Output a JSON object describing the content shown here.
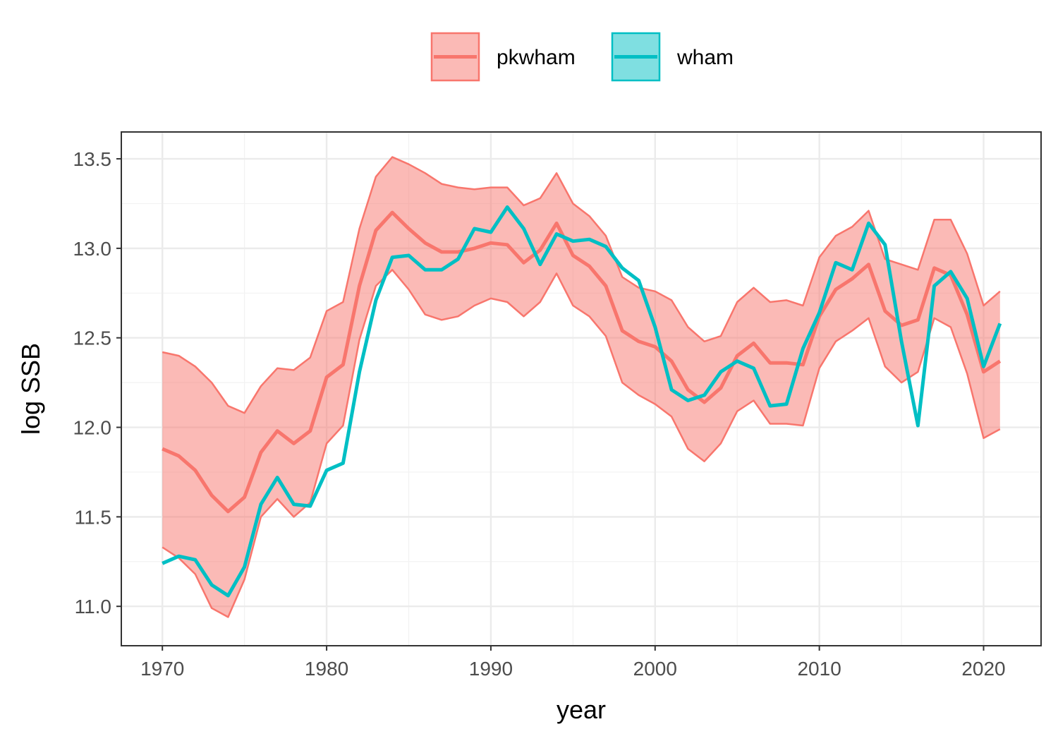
{
  "chart_data": {
    "type": "line",
    "title": "",
    "xlabel": "year",
    "ylabel": "log SSB",
    "xlim": [
      1967.5,
      2023.5
    ],
    "ylim": [
      10.78,
      13.65
    ],
    "x_ticks": [
      1970,
      1980,
      1990,
      2000,
      2010,
      2020
    ],
    "y_ticks": [
      11.0,
      11.5,
      12.0,
      12.5,
      13.0,
      13.5
    ],
    "y_tick_labels": [
      "11.0",
      "11.5",
      "12.0",
      "12.5",
      "13.0",
      "13.5"
    ],
    "grid": true,
    "legend_position": "top",
    "x": [
      1970,
      1971,
      1972,
      1973,
      1974,
      1975,
      1976,
      1977,
      1978,
      1979,
      1980,
      1981,
      1982,
      1983,
      1984,
      1985,
      1986,
      1987,
      1988,
      1989,
      1990,
      1991,
      1992,
      1993,
      1994,
      1995,
      1996,
      1997,
      1998,
      1999,
      2000,
      2001,
      2002,
      2003,
      2004,
      2005,
      2006,
      2007,
      2008,
      2009,
      2010,
      2011,
      2012,
      2013,
      2014,
      2015,
      2016,
      2017,
      2018,
      2019,
      2020,
      2021
    ],
    "series": [
      {
        "name": "pkwham",
        "color": "#F8766D",
        "values": [
          11.88,
          11.84,
          11.76,
          11.62,
          11.53,
          11.61,
          11.86,
          11.98,
          11.91,
          11.98,
          12.28,
          12.35,
          12.79,
          13.1,
          13.2,
          13.11,
          13.03,
          12.98,
          12.98,
          13.0,
          13.03,
          13.02,
          12.92,
          12.99,
          13.14,
          12.96,
          12.9,
          12.79,
          12.54,
          12.48,
          12.45,
          12.37,
          12.21,
          12.14,
          12.22,
          12.4,
          12.47,
          12.36,
          12.36,
          12.35,
          12.62,
          12.77,
          12.83,
          12.91,
          12.65,
          12.57,
          12.6,
          12.89,
          12.85,
          12.63,
          12.31,
          12.37
        ],
        "lower": [
          11.33,
          11.27,
          11.18,
          10.99,
          10.94,
          11.15,
          11.5,
          11.6,
          11.5,
          11.58,
          11.91,
          12.01,
          12.49,
          12.79,
          12.88,
          12.77,
          12.63,
          12.6,
          12.62,
          12.68,
          12.72,
          12.7,
          12.62,
          12.7,
          12.86,
          12.68,
          12.62,
          12.51,
          12.25,
          12.18,
          12.13,
          12.06,
          11.88,
          11.81,
          11.91,
          12.09,
          12.15,
          12.02,
          12.02,
          12.01,
          12.33,
          12.48,
          12.54,
          12.61,
          12.34,
          12.25,
          12.31,
          12.61,
          12.56,
          12.3,
          11.94,
          11.99
        ],
        "upper": [
          12.42,
          12.4,
          12.34,
          12.25,
          12.12,
          12.08,
          12.23,
          12.33,
          12.32,
          12.39,
          12.65,
          12.7,
          13.11,
          13.4,
          13.51,
          13.47,
          13.42,
          13.36,
          13.34,
          13.33,
          13.34,
          13.34,
          13.24,
          13.28,
          13.42,
          13.25,
          13.18,
          13.07,
          12.84,
          12.78,
          12.76,
          12.71,
          12.56,
          12.48,
          12.51,
          12.7,
          12.78,
          12.7,
          12.71,
          12.68,
          12.95,
          13.07,
          13.12,
          13.21,
          12.94,
          12.91,
          12.88,
          13.16,
          13.16,
          12.97,
          12.68,
          12.76
        ]
      },
      {
        "name": "wham",
        "color": "#00BFC4",
        "values": [
          11.24,
          11.28,
          11.26,
          11.12,
          11.06,
          11.22,
          11.57,
          11.72,
          11.57,
          11.56,
          11.76,
          11.8,
          12.31,
          12.71,
          12.95,
          12.96,
          12.88,
          12.88,
          12.94,
          13.11,
          13.09,
          13.23,
          13.11,
          12.91,
          13.08,
          13.04,
          13.05,
          13.01,
          12.89,
          12.82,
          12.56,
          12.21,
          12.15,
          12.18,
          12.31,
          12.37,
          12.33,
          12.12,
          12.13,
          12.44,
          12.64,
          12.92,
          12.88,
          13.14,
          13.02,
          12.48,
          12.01,
          12.79,
          12.87,
          12.72,
          12.34,
          12.58
        ]
      }
    ]
  }
}
